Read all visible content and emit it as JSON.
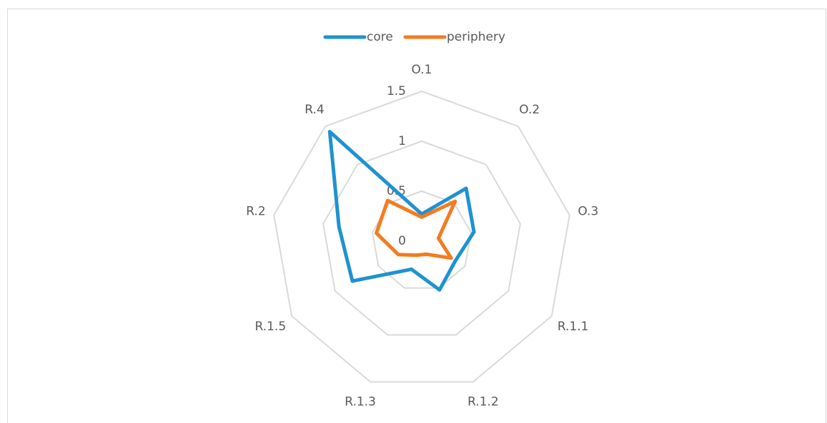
{
  "chart_data": {
    "type": "radar",
    "categories": [
      "O.1",
      "O.2",
      "O.3",
      "R.1.1",
      "R.1.2",
      "R.1.3",
      "R.1.5",
      "R.2",
      "R.4"
    ],
    "series": [
      {
        "name": "core",
        "color": "#1f92d0",
        "values": [
          0.27,
          0.69,
          0.53,
          0.39,
          0.52,
          0.3,
          0.8,
          0.84,
          1.43
        ]
      },
      {
        "name": "periphery",
        "color": "#f47b20",
        "values": [
          0.24,
          0.52,
          0.17,
          0.34,
          0.14,
          0.15,
          0.27,
          0.46,
          0.53
        ]
      }
    ],
    "ylim": [
      0,
      1.5
    ],
    "yticks": [
      0,
      0.5,
      1,
      1.5
    ],
    "grid": true,
    "legend": "top"
  }
}
